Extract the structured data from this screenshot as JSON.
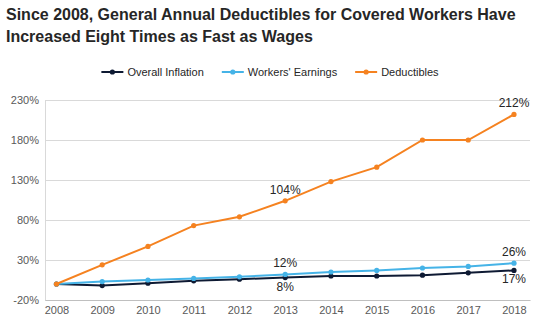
{
  "chart_data": {
    "type": "line",
    "title": "Since 2008, General Annual Deductibles for Covered Workers Have Increased Eight Times as Fast as Wages",
    "x": [
      2008,
      2009,
      2010,
      2011,
      2012,
      2013,
      2014,
      2015,
      2016,
      2017,
      2018
    ],
    "xlim": [
      2007.75,
      2018.35
    ],
    "xticks": [
      2008,
      2009,
      2010,
      2011,
      2012,
      2013,
      2014,
      2015,
      2016,
      2017,
      2018
    ],
    "ylim": [
      -20,
      230
    ],
    "yticks": [
      {
        "value": -20,
        "label": "-20%"
      },
      {
        "value": 30,
        "label": "30%"
      },
      {
        "value": 80,
        "label": "80%"
      },
      {
        "value": 130,
        "label": "130%"
      },
      {
        "value": 180,
        "label": "180%"
      },
      {
        "value": 230,
        "label": "230%"
      }
    ],
    "grid": true,
    "legend": "top",
    "marker": "circle",
    "data_labels": true,
    "series": [
      {
        "name": "Overall Inflation",
        "color": "#0e1a33",
        "values": [
          0,
          -2,
          1,
          4,
          6,
          8,
          10,
          10,
          11,
          14,
          17
        ],
        "value_labels": [
          null,
          null,
          null,
          null,
          null,
          "8%",
          null,
          null,
          null,
          null,
          "17%"
        ]
      },
      {
        "name": "Workers' Earnings",
        "color": "#45b3e7",
        "values": [
          0,
          3,
          5,
          7,
          9,
          12,
          15,
          17,
          20,
          22,
          26
        ],
        "value_labels": [
          null,
          null,
          null,
          null,
          null,
          "12%",
          null,
          null,
          null,
          null,
          "26%"
        ]
      },
      {
        "name": "Deductibles",
        "color": "#f58220",
        "values": [
          0,
          24,
          47,
          73,
          84,
          104,
          128,
          146,
          180,
          180,
          212
        ],
        "value_labels": [
          null,
          null,
          null,
          null,
          null,
          "104%",
          null,
          null,
          null,
          null,
          "212%"
        ]
      }
    ]
  }
}
